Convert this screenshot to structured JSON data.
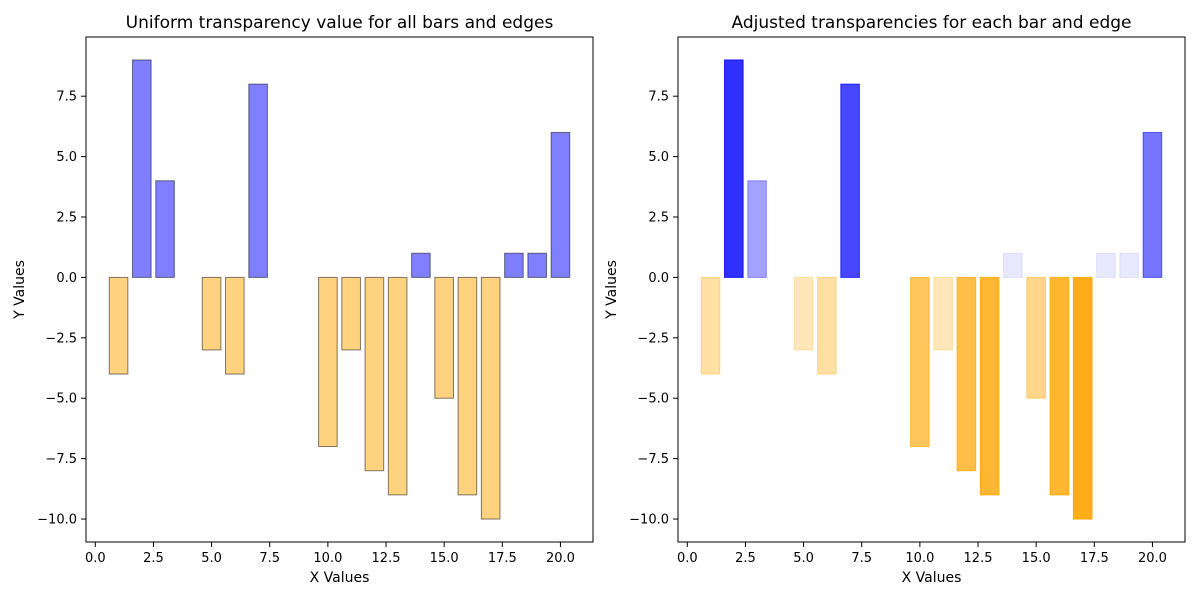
{
  "chart_data": [
    {
      "type": "bar",
      "title": "Uniform transparency value for all bars and edges",
      "xlabel": "X Values",
      "ylabel": "Y Values",
      "x": [
        1,
        2,
        3,
        4,
        5,
        6,
        7,
        8,
        9,
        10,
        11,
        12,
        13,
        14,
        15,
        16,
        17,
        18,
        19,
        20
      ],
      "values": [
        -4,
        9,
        4,
        0,
        -3,
        -4,
        8,
        0,
        0,
        -7,
        -3,
        -8,
        -9,
        1,
        -5,
        -9,
        -10,
        1,
        1,
        6
      ],
      "xlim": [
        -0.4,
        21.4
      ],
      "ylim": [
        -10.95,
        9.95
      ],
      "xticks": [
        0.0,
        2.5,
        5.0,
        7.5,
        10.0,
        12.5,
        15.0,
        17.5,
        20.0
      ],
      "xtick_labels": [
        "0.0",
        "2.5",
        "5.0",
        "7.5",
        "10.0",
        "12.5",
        "15.0",
        "17.5",
        "20.0"
      ],
      "yticks": [
        -10.0,
        -7.5,
        -5.0,
        -2.5,
        0.0,
        2.5,
        5.0,
        7.5
      ],
      "ytick_labels": [
        "−10.0",
        "−7.5",
        "−5.0",
        "−2.5",
        "0.0",
        "2.5",
        "5.0",
        "7.5"
      ],
      "colors": {
        "positive": "#0000ff",
        "negative": "#ffa500",
        "edge": "#000000"
      },
      "transparency": "uniform",
      "alpha": 0.5,
      "grid": false,
      "legend": false
    },
    {
      "type": "bar",
      "title": "Adjusted transparencies for each bar and edge",
      "xlabel": "X Values",
      "ylabel": "Y Values",
      "x": [
        1,
        2,
        3,
        4,
        5,
        6,
        7,
        8,
        9,
        10,
        11,
        12,
        13,
        14,
        15,
        16,
        17,
        18,
        19,
        20
      ],
      "values": [
        -4,
        9,
        4,
        0,
        -3,
        -4,
        8,
        0,
        0,
        -7,
        -3,
        -8,
        -9,
        1,
        -5,
        -9,
        -10,
        1,
        1,
        6
      ],
      "xlim": [
        -0.4,
        21.4
      ],
      "ylim": [
        -10.95,
        9.95
      ],
      "xticks": [
        0.0,
        2.5,
        5.0,
        7.5,
        10.0,
        12.5,
        15.0,
        17.5,
        20.0
      ],
      "xtick_labels": [
        "0.0",
        "2.5",
        "5.0",
        "7.5",
        "10.0",
        "12.5",
        "15.0",
        "17.5",
        "20.0"
      ],
      "yticks": [
        -10.0,
        -7.5,
        -5.0,
        -2.5,
        0.0,
        2.5,
        5.0,
        7.5
      ],
      "ytick_labels": [
        "−10.0",
        "−7.5",
        "−5.0",
        "−2.5",
        "0.0",
        "2.5",
        "5.0",
        "7.5"
      ],
      "colors": {
        "positive": "#0000ff",
        "negative": "#ffa500"
      },
      "transparency": "proportional to absolute value",
      "grid": false,
      "legend": false
    }
  ]
}
